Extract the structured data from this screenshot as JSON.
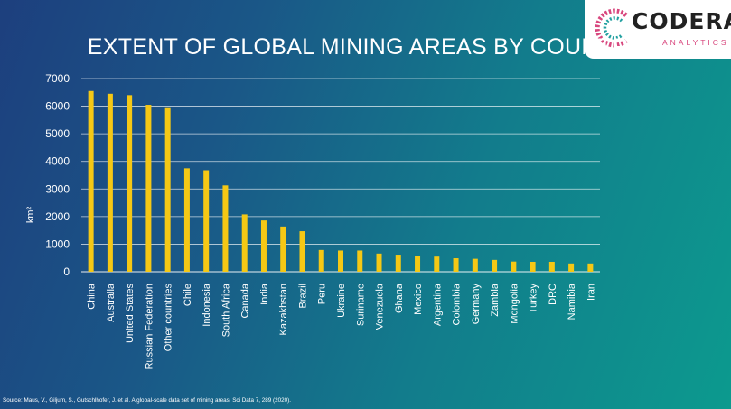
{
  "brand": {
    "name": "CODERA",
    "tagline": "ANALYTICS"
  },
  "source": "Source: Maus, V., Giljum, S., Gutschlhofer, J. et al. A global-scale data set of mining areas. Sci Data 7, 289 (2020).",
  "colors": {
    "bar": "#f5c815",
    "gridline": "#ffffff",
    "text": "#ffffff"
  },
  "chart_data": {
    "type": "bar",
    "title": "EXTENT OF GLOBAL MINING AREAS BY COUNTRY",
    "ylabel": "km²",
    "xlabel": "",
    "ylim": [
      0,
      7000
    ],
    "yticks": [
      0,
      1000,
      2000,
      3000,
      4000,
      5000,
      6000,
      7000
    ],
    "grid": true,
    "legend": "none",
    "categories": [
      "China",
      "Australia",
      "United States",
      "Russian Federation",
      "Other countries",
      "Chile",
      "Indonesia",
      "South Africa",
      "Canada",
      "India",
      "Kazakhstan",
      "Brazil",
      "Peru",
      "Ukraine",
      "Suriname",
      "Venezuela",
      "Ghana",
      "Mexico",
      "Argentina",
      "Colombia",
      "Germany",
      "Zambia",
      "Mongolia",
      "Turkey",
      "DRC",
      "Namibia",
      "Iran"
    ],
    "values": [
      6550,
      6450,
      6400,
      6050,
      5930,
      3750,
      3680,
      3130,
      2080,
      1860,
      1640,
      1470,
      790,
      770,
      770,
      660,
      620,
      580,
      550,
      490,
      470,
      430,
      370,
      360,
      360,
      300,
      300
    ]
  }
}
